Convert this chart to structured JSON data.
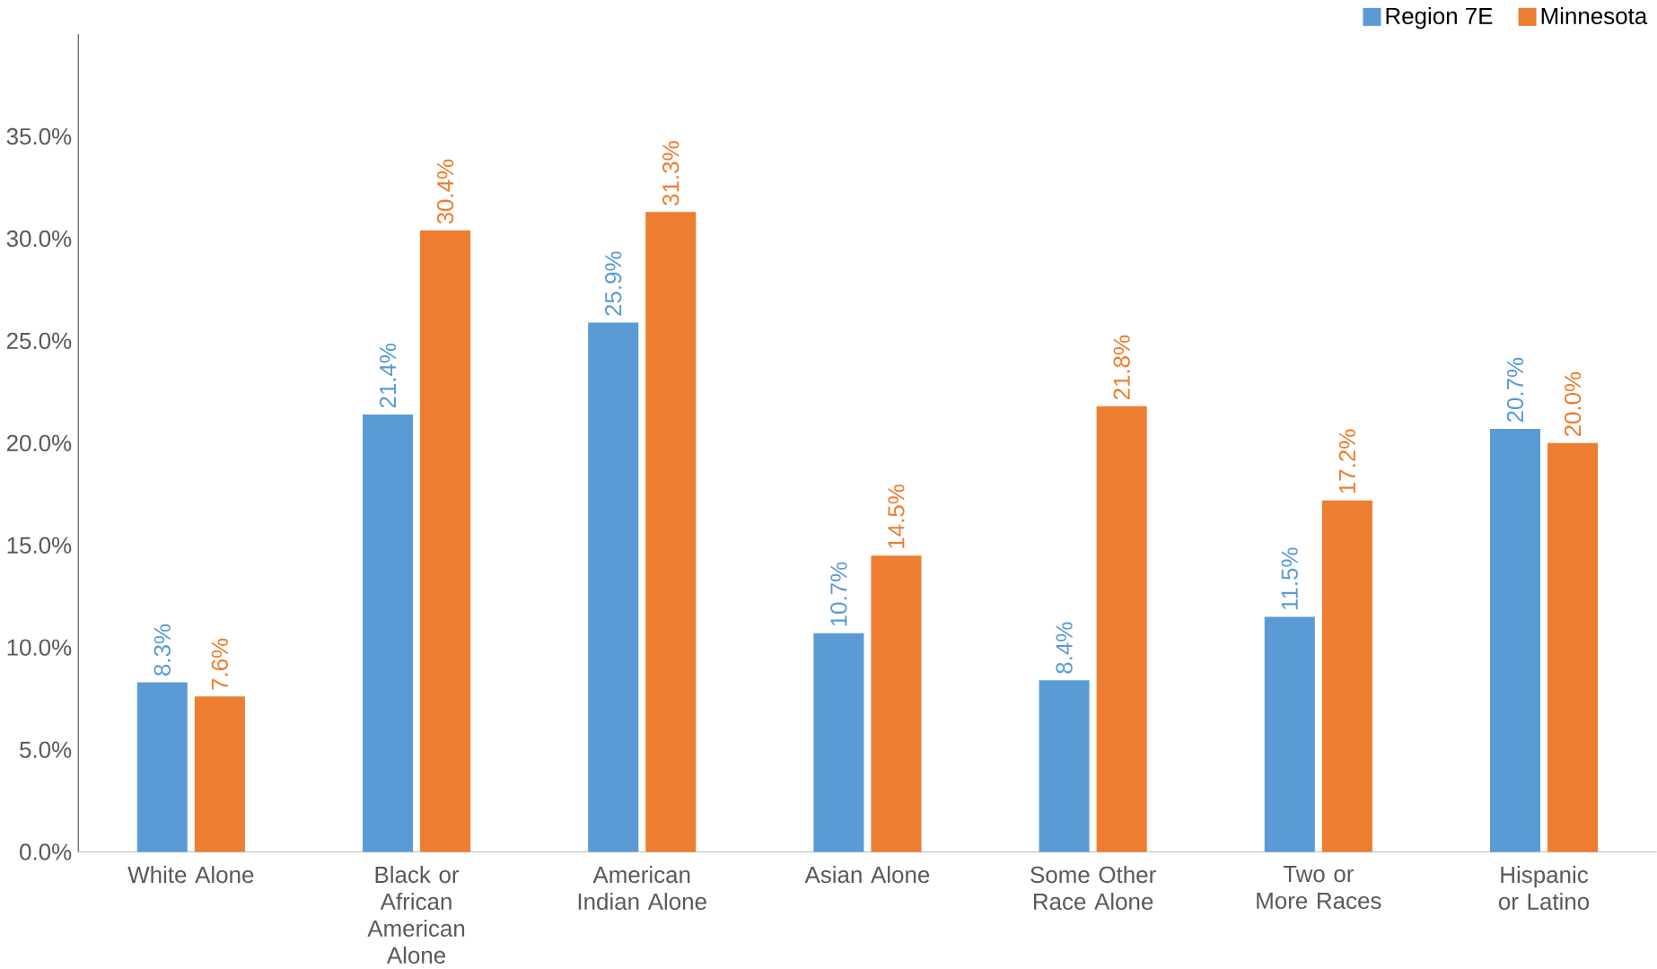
{
  "chart_data": {
    "type": "bar",
    "categories": [
      "White Alone",
      "Black or African American Alone",
      "American Indian Alone",
      "Asian Alone",
      "Some Other Race Alone",
      "Two or More Races",
      "Hispanic or Latino"
    ],
    "series": [
      {
        "name": "Region 7E",
        "color": "#5b9bd5",
        "values": [
          8.3,
          21.4,
          25.9,
          10.7,
          8.4,
          11.5,
          20.7
        ],
        "value_labels": [
          "8.3%",
          "21.4%",
          "25.9%",
          "10.7%",
          "8.4%",
          "11.5%",
          "20.7%"
        ]
      },
      {
        "name": "Minnesota",
        "color": "#ed7d31",
        "values": [
          7.6,
          30.4,
          31.3,
          14.5,
          21.8,
          17.2,
          20.0
        ],
        "value_labels": [
          "7.6%",
          "30.4%",
          "31.3%",
          "14.5%",
          "21.8%",
          "17.2%",
          "20.0%"
        ]
      }
    ],
    "ylim": [
      0,
      40
    ],
    "yticks": [
      {
        "value": 0,
        "label": "0.0%"
      },
      {
        "value": 5,
        "label": "5.0%"
      },
      {
        "value": 10,
        "label": "10.0%"
      },
      {
        "value": 15,
        "label": "15.0%"
      },
      {
        "value": 20,
        "label": "20.0%"
      },
      {
        "value": 25,
        "label": "25.0%"
      },
      {
        "value": 30,
        "label": "30.0%"
      },
      {
        "value": 35,
        "label": "35.0%"
      }
    ],
    "grid": false,
    "legend": "top right"
  }
}
